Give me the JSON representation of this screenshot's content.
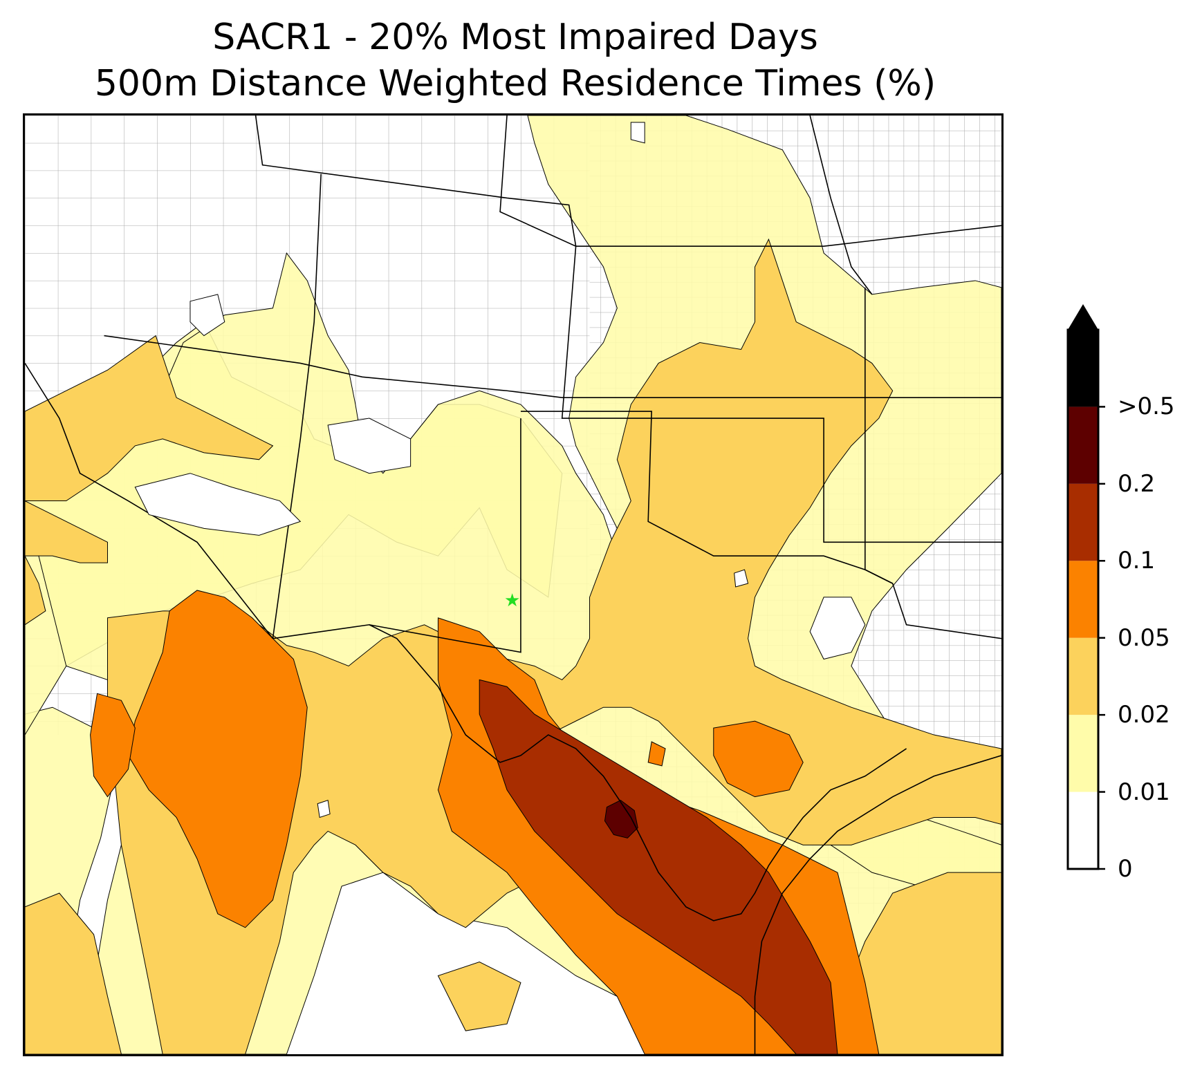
{
  "title": {
    "line1": "SACR1 - 20% Most Impaired Days",
    "line2": "500m Distance Weighted Residence Times (%)"
  },
  "legend": {
    "levels": [
      {
        "label": "0",
        "color": "#ffffff"
      },
      {
        "label": "0.01",
        "color": "#fffcaa"
      },
      {
        "label": "0.02",
        "color": "#fcd25c"
      },
      {
        "label": "0.05",
        "color": "#fb8200"
      },
      {
        "label": "0.1",
        "color": "#a82d00"
      },
      {
        "label": "0.2",
        "color": "#5d0000"
      },
      {
        "label": ">0.5",
        "color": "#000000"
      }
    ],
    "extend": "max"
  },
  "map": {
    "site_marker": "green-star",
    "site_marker_color": "#22dd22",
    "boundaries": [
      "state-borders",
      "county-borders",
      "coastline",
      "mexico-border"
    ]
  }
}
